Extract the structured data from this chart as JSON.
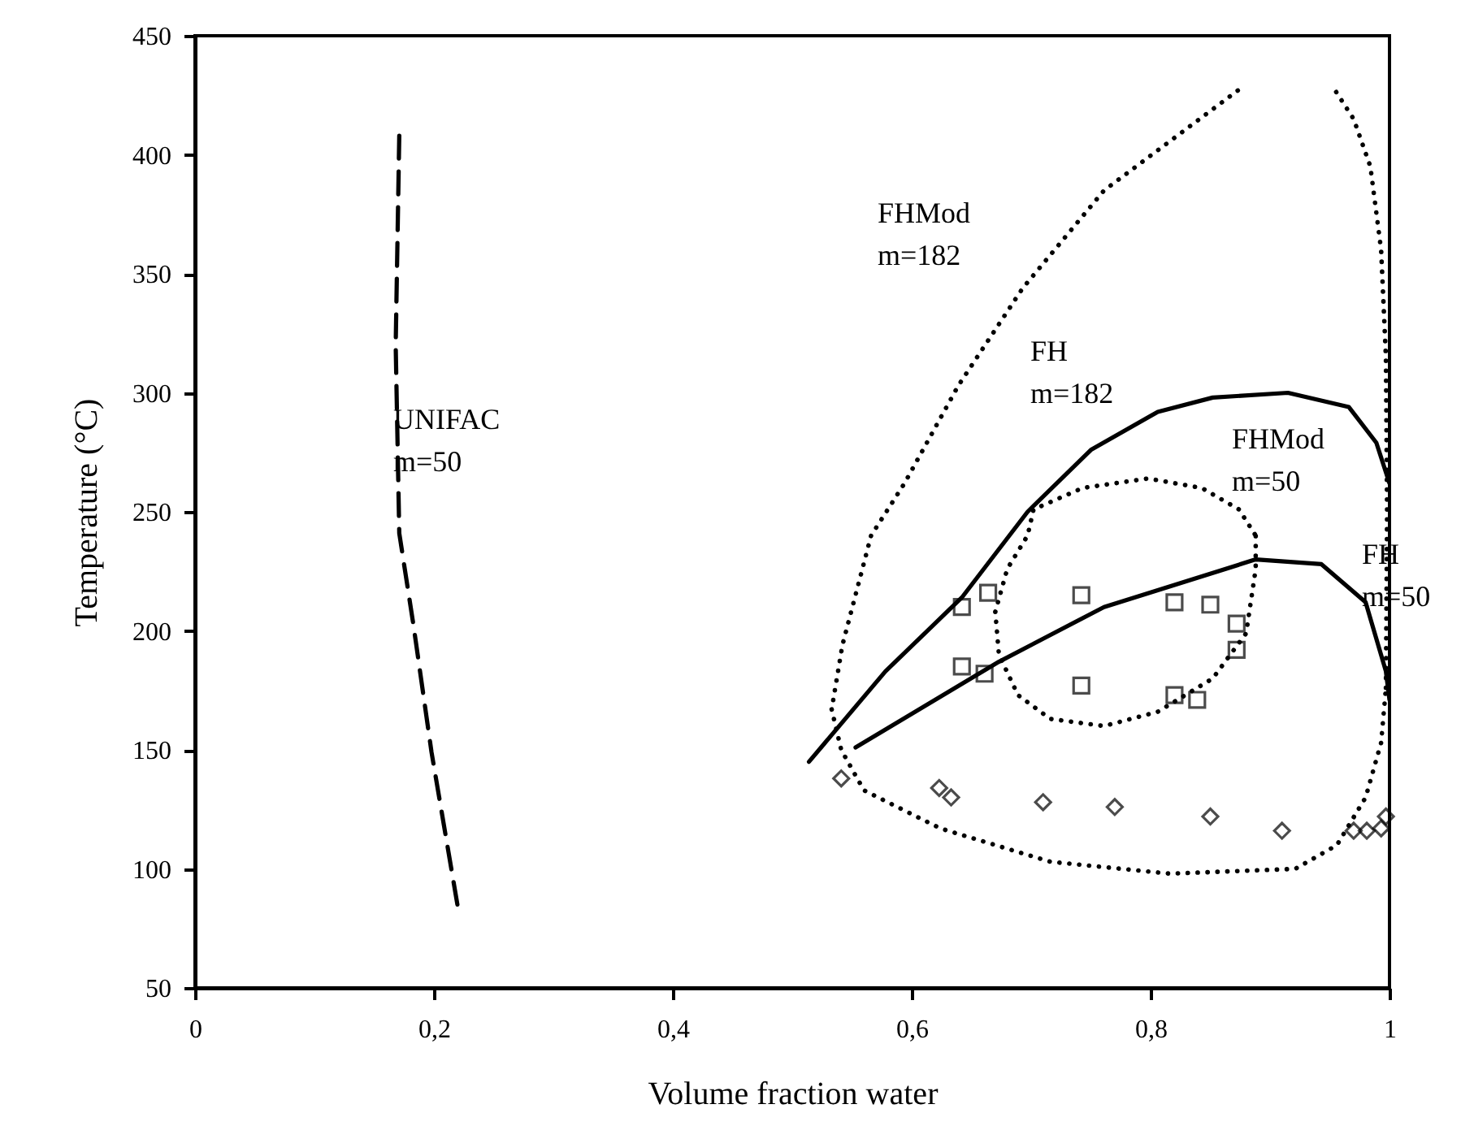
{
  "chart_data": {
    "type": "line",
    "xlabel": "Volume fraction water",
    "ylabel": "Temperature (°C)",
    "xlim": [
      0,
      1
    ],
    "ylim": [
      50,
      450
    ],
    "xticks": [
      0,
      {
        "value": 0.2,
        "label": "0,2"
      },
      {
        "value": 0.4,
        "label": "0,4"
      },
      {
        "value": 0.6,
        "label": "0,6"
      },
      {
        "value": 0.8,
        "label": "0,8"
      },
      1
    ],
    "yticks": [
      50,
      100,
      150,
      200,
      250,
      300,
      350,
      400,
      450
    ],
    "grid": false,
    "series": [
      {
        "name": "UNIFAC m=50",
        "line_style": "dashed",
        "color": "#000000",
        "x": [
          0.171,
          0.168,
          0.171,
          0.183,
          0.198,
          0.22
        ],
        "values": [
          408,
          320,
          241,
          202,
          149,
          84
        ]
      },
      {
        "name": "FH m=182",
        "line_style": "solid",
        "color": "#000000",
        "x": [
          0.514,
          0.578,
          0.642,
          0.697,
          0.75,
          0.806,
          0.852,
          0.915,
          0.966,
          0.989,
          1.0
        ],
        "values": [
          145,
          183,
          214,
          250,
          276,
          292,
          298,
          300,
          294,
          279,
          262
        ]
      },
      {
        "name": "FH m=50",
        "line_style": "solid",
        "color": "#000000",
        "x": [
          0.553,
          0.673,
          0.761,
          0.888,
          0.943,
          0.98,
          0.997,
          1.0
        ],
        "values": [
          151,
          187,
          210,
          230,
          228,
          212,
          183,
          171
        ]
      },
      {
        "name": "FHMod m=50",
        "line_style": "dotted",
        "color": "#000000",
        "x": [
          0.67,
          0.68,
          0.697,
          0.702,
          0.743,
          0.798,
          0.843,
          0.874,
          0.888,
          null,
          0.67,
          0.673,
          0.689,
          0.716,
          0.761,
          0.806,
          0.852,
          0.88,
          0.888,
          0.888
        ],
        "values": [
          208,
          226,
          240,
          251,
          260,
          264,
          260,
          251,
          240,
          null,
          208,
          190,
          173,
          163,
          160,
          166,
          180,
          199,
          226,
          240
        ]
      },
      {
        "name": "FHMod m=182",
        "line_style": "dotted",
        "color": "#000000",
        "x": [
          0.873,
          0.761,
          0.693,
          0.639,
          0.594,
          0.566,
          0.542,
          0.533,
          null,
          0.533,
          0.541,
          0.56,
          0.624,
          0.716,
          0.816,
          0.921,
          0.956,
          0.98,
          0.993,
          0.997,
          null,
          0.997,
          0.998,
          0.997,
          0.993,
          0.984,
          0.97,
          0.952
        ],
        "values": [
          427,
          385,
          344,
          303,
          262,
          240,
          194,
          167,
          null,
          167,
          150,
          133,
          117,
          103,
          98,
          100,
          110,
          130,
          153,
          176,
          null,
          176,
          250,
          315,
          360,
          395,
          415,
          429
        ]
      },
      {
        "type": "scatter",
        "marker": "square",
        "color": "#000000",
        "x": [
          0.642,
          0.664,
          0.742,
          0.82,
          0.85,
          0.872,
          0.872,
          0.642,
          0.661,
          0.742,
          0.82,
          0.839
        ],
        "values": [
          210,
          216,
          215,
          212,
          211,
          203,
          192,
          185,
          182,
          177,
          173,
          171
        ]
      },
      {
        "type": "scatter",
        "marker": "diamond",
        "color": "#000000",
        "x": [
          0.541,
          0.623,
          0.633,
          0.71,
          0.77,
          0.85,
          0.91,
          0.97,
          0.981,
          0.993,
          0.997
        ],
        "values": [
          138,
          134,
          130,
          128,
          126,
          122,
          116,
          116,
          116,
          117,
          122
        ]
      }
    ]
  }
}
